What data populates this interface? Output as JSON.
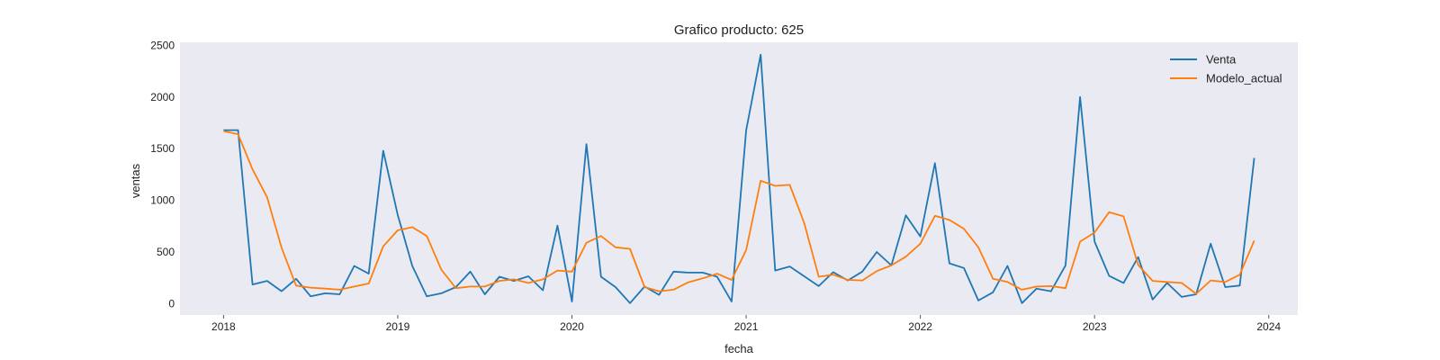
{
  "chart_data": {
    "type": "line",
    "title": "Grafico producto: 625",
    "xlabel": "fecha",
    "ylabel": "ventas",
    "x_start": "2018-01",
    "x_frequency": "monthly",
    "x_ticks": [
      2018,
      2019,
      2020,
      2021,
      2022,
      2023,
      2024
    ],
    "y_ticks": [
      0,
      500,
      1000,
      1500,
      2000,
      2500
    ],
    "xlim": [
      "2017-10",
      "2024-03"
    ],
    "ylim": [
      -110,
      2530
    ],
    "grid": false,
    "background": "#eaeaf2",
    "legend": {
      "placement": "top-right"
    },
    "series": [
      {
        "name": "Venta",
        "color": "#1f77b4",
        "values": [
          1680,
          1680,
          185,
          220,
          120,
          240,
          70,
          100,
          90,
          365,
          290,
          1480,
          860,
          365,
          70,
          100,
          160,
          310,
          90,
          260,
          220,
          265,
          130,
          755,
          20,
          1545,
          260,
          160,
          5,
          165,
          85,
          310,
          300,
          300,
          260,
          20,
          1680,
          2410,
          320,
          360,
          265,
          170,
          305,
          225,
          310,
          500,
          370,
          855,
          650,
          1360,
          390,
          345,
          30,
          110,
          365,
          5,
          145,
          120,
          370,
          2000,
          600,
          270,
          200,
          450,
          40,
          200,
          65,
          90,
          580,
          160,
          175,
          1410
        ]
      },
      {
        "name": "Modelo_actual",
        "color": "#ff7f0e",
        "values": [
          1670,
          1640,
          1300,
          1030,
          540,
          175,
          155,
          145,
          135,
          165,
          195,
          555,
          710,
          740,
          655,
          330,
          150,
          165,
          165,
          220,
          235,
          200,
          235,
          320,
          310,
          590,
          655,
          545,
          530,
          160,
          120,
          135,
          205,
          245,
          290,
          230,
          520,
          1190,
          1140,
          1150,
          780,
          260,
          280,
          230,
          225,
          315,
          370,
          455,
          580,
          850,
          810,
          725,
          545,
          240,
          210,
          135,
          165,
          170,
          150,
          600,
          690,
          885,
          845,
          375,
          220,
          210,
          200,
          95,
          225,
          210,
          280,
          610
        ]
      }
    ]
  }
}
